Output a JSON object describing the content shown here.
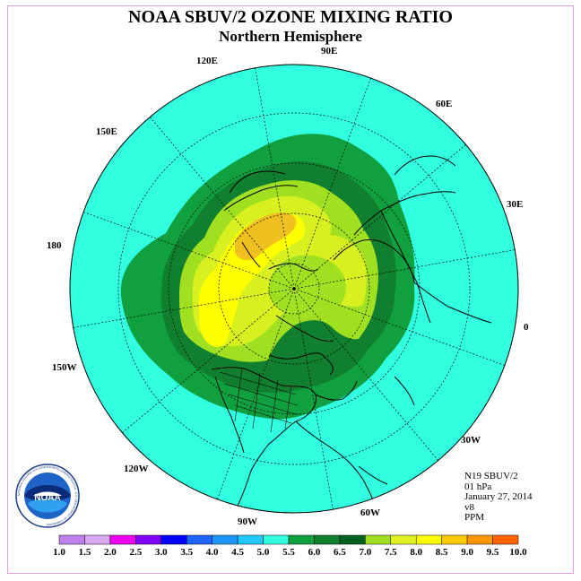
{
  "title": "NOAA SBUV/2 OZONE MIXING RATIO",
  "subtitle": "Northern Hemisphere",
  "longitude_labels": {
    "lon_90e": "90E",
    "lon_60e": "60E",
    "lon_30e": "30E",
    "lon_0": "0",
    "lon_30w": "30W",
    "lon_60w": "60W",
    "lon_90w": "90W",
    "lon_120w": "120W",
    "lon_150w": "150W",
    "lon_180": "180",
    "lon_150e": "150E",
    "lon_120e": "120E"
  },
  "info": {
    "satellite": "N19 SBUV/2",
    "level": "01 hPa",
    "date": "January 27, 2014",
    "version": "v8",
    "units": "PPM"
  },
  "logo_text": {
    "name": "NOAA",
    "ring_text": "NATIONAL OCEANIC AND ATMOSPHERIC ADMINISTRATION · U.S. DEPARTMENT OF COMMERCE"
  },
  "colorbar": {
    "ticks": [
      "1.0",
      "1.5",
      "2.0",
      "2.5",
      "3.0",
      "3.5",
      "4.0",
      "4.5",
      "5.0",
      "5.5",
      "6.0",
      "6.5",
      "7.0",
      "7.5",
      "8.0",
      "8.5",
      "9.0",
      "9.5",
      "10.0"
    ],
    "colors": [
      "#c080f0",
      "#d8a8f0",
      "#f000f0",
      "#8000ff",
      "#0000ff",
      "#1e64ff",
      "#1e96ff",
      "#20c8ff",
      "#30ffe0",
      "#10a040",
      "#108030",
      "#006020",
      "#a0e020",
      "#e0f020",
      "#ffff00",
      "#ffc800",
      "#ff9600",
      "#ff6400",
      "#ff0000",
      "#e00000",
      "#806040"
    ]
  },
  "colors": {
    "background_field": "#30ffe0",
    "contour_5_0": "#10a040",
    "contour_5_5": "#108030",
    "contour_6_0": "#a0e020",
    "contour_6_5": "#d0f020",
    "contour_7_0": "#ffff00",
    "contour_7_5": "#f0c020"
  }
}
